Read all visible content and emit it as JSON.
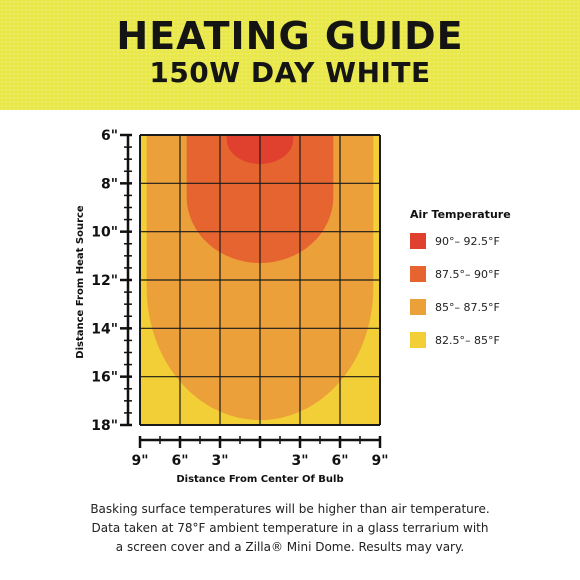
{
  "header": {
    "title": "HEATING GUIDE",
    "subtitle": "150W DAY WHITE"
  },
  "chart_data": {
    "type": "heatmap",
    "title": "HEATING GUIDE",
    "subtitle": "150W DAY WHITE",
    "xlabel": "Distance From Center Of Bulb",
    "ylabel": "Distance From Heat Source",
    "x_ticks": [
      "9\"",
      "6\"",
      "3\"",
      "3\"",
      "6\"",
      "9\""
    ],
    "y_ticks": [
      "6\"",
      "8\"",
      "10\"",
      "12\"",
      "14\"",
      "16\"",
      "18\""
    ],
    "xlim": [
      -9,
      9
    ],
    "ylim": [
      6,
      18
    ],
    "grid": true,
    "legend": {
      "title": "Air Temperature",
      "placement": "right",
      "items": [
        {
          "label": "90°– 92.5°F",
          "color": "#e0412f"
        },
        {
          "label": "87.5°– 90°F",
          "color": "#e6642f"
        },
        {
          "label": "85°– 87.5°F",
          "color": "#eba03a"
        },
        {
          "label": "82.5°– 85°F",
          "color": "#f2cf36"
        }
      ]
    },
    "zones": [
      {
        "range": "82.5°– 85°F",
        "color": "#f2cf36",
        "half_width_in": 9,
        "top_in": 6,
        "bottom_in": 18
      },
      {
        "range": "85°– 87.5°F",
        "color": "#eba03a",
        "half_width_in": 8.5,
        "top_in": 6,
        "bottom_in": 17.8
      },
      {
        "range": "87.5°– 90°F",
        "color": "#e6642f",
        "half_width_in": 5.5,
        "top_in": 6,
        "bottom_in": 11.3
      },
      {
        "range": "90°– 92.5°F",
        "color": "#e0412f",
        "half_width_in": 2.5,
        "top_in": 6,
        "bottom_in": 7.2
      }
    ]
  },
  "footer": {
    "line1": "Basking surface temperatures will be higher than air temperature.",
    "line2": "Data taken at 78°F ambient temperature in a glass terrarium with",
    "line3": "a screen cover and a Zilla® Mini Dome. Results may vary."
  }
}
